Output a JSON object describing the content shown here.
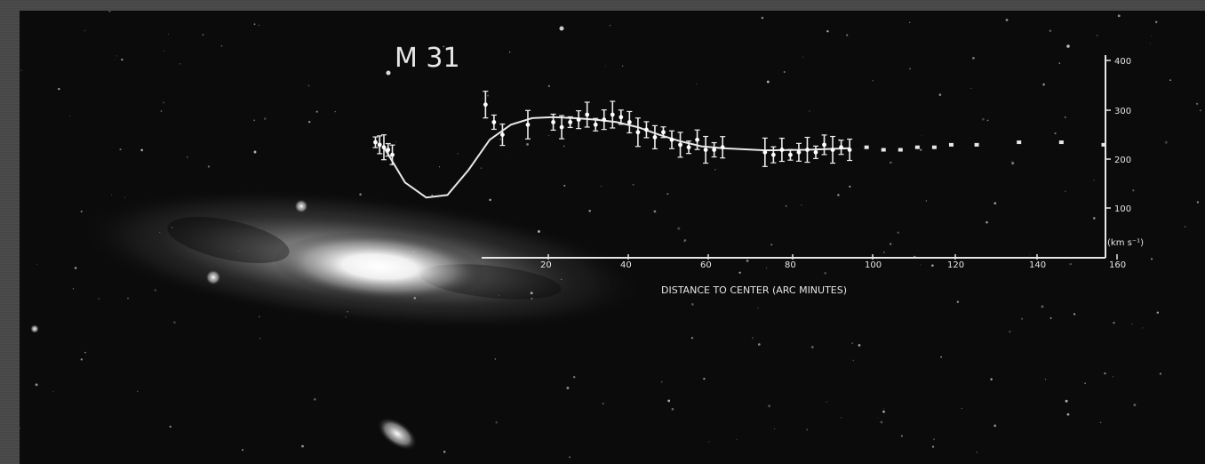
{
  "chart_data": {
    "type": "scatter",
    "title": "M 31",
    "xlabel": "DISTANCE TO CENTER (ARC MINUTES)",
    "ylabel": "(km s⁻¹)",
    "x_ticks": [
      "20",
      "40",
      "60",
      "80",
      "100",
      "120",
      "140",
      "160"
    ],
    "y_ticks": [
      "100",
      "200",
      "300",
      "400"
    ],
    "xlim": [
      0,
      170
    ],
    "ylim": [
      0,
      400
    ],
    "grid": false,
    "series": [
      {
        "marker": "errorbar",
        "x": [
          -2,
          -1,
          0,
          1,
          2,
          24,
          26,
          28,
          34,
          40,
          42,
          44,
          46,
          48,
          50,
          52,
          54,
          56,
          58,
          60,
          62,
          64,
          66,
          68,
          70,
          72,
          74,
          76,
          78,
          80,
          90,
          92,
          94,
          96,
          98,
          100,
          102,
          104,
          106,
          108,
          110
        ],
        "y": [
          230,
          225,
          220,
          215,
          205,
          305,
          270,
          245,
          265,
          270,
          260,
          270,
          275,
          285,
          265,
          275,
          285,
          280,
          270,
          250,
          255,
          240,
          250,
          235,
          225,
          220,
          235,
          215,
          215,
          220,
          210,
          205,
          215,
          205,
          210,
          215,
          210,
          225,
          215,
          220,
          215
        ]
      },
      {
        "marker": "dot",
        "x": [
          114,
          118,
          122,
          126,
          130,
          134,
          140,
          150,
          160,
          170
        ],
        "y": [
          220,
          215,
          215,
          220,
          220,
          225,
          225,
          230,
          230,
          225
        ]
      }
    ],
    "curve": {
      "x": [
        0,
        5,
        10,
        15,
        20,
        25,
        30,
        35,
        40,
        45,
        50,
        55,
        60,
        65,
        70,
        75,
        80,
        90,
        100,
        110
      ],
      "y": [
        220,
        150,
        120,
        125,
        175,
        235,
        265,
        278,
        280,
        278,
        275,
        270,
        260,
        245,
        232,
        222,
        218,
        214,
        215,
        218
      ]
    }
  }
}
